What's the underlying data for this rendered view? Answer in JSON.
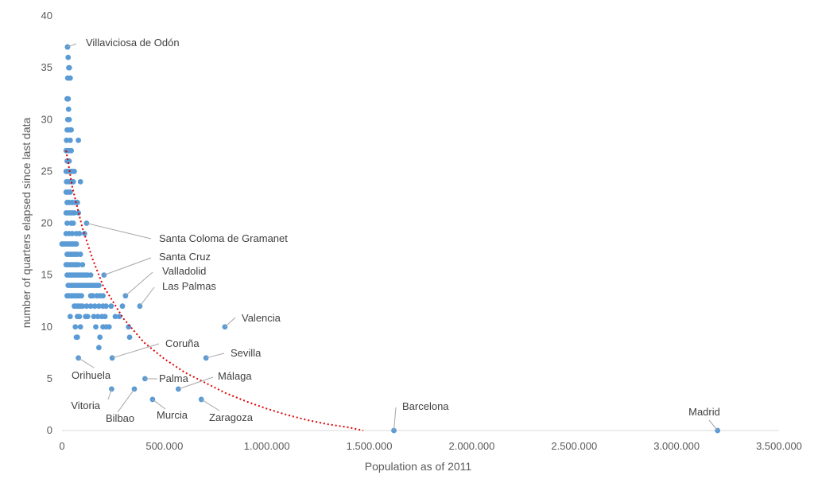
{
  "chart_data": {
    "type": "scatter",
    "title": "",
    "xlabel": "Population as of 2011",
    "ylabel": "number of quarters elapsed since last data",
    "xlim": [
      0,
      3500000
    ],
    "ylim": [
      0,
      40
    ],
    "x_ticks": [
      0,
      500000,
      1000000,
      1500000,
      2000000,
      2500000,
      3000000,
      3500000
    ],
    "x_tick_labels": [
      "0",
      "500.000",
      "1.000.000",
      "1.500.000",
      "2.000.000",
      "2.500.000",
      "3.000.000",
      "3.500.000"
    ],
    "y_ticks": [
      0,
      5,
      10,
      15,
      20,
      25,
      30,
      35,
      40
    ],
    "y_tick_labels": [
      "0",
      "5",
      "10",
      "15",
      "20",
      "25",
      "30",
      "35",
      "40"
    ],
    "grid": false,
    "legend": "none",
    "colors": {
      "points": "#5B9BD5",
      "trendline": "#E00000"
    },
    "trendline": {
      "style": "dotted",
      "type": "exponential-decay",
      "points": [
        [
          20000,
          27
        ],
        [
          50000,
          23.5
        ],
        [
          100000,
          19.5
        ],
        [
          150000,
          16.5
        ],
        [
          200000,
          14
        ],
        [
          300000,
          10.8
        ],
        [
          400000,
          8.5
        ],
        [
          500000,
          6.9
        ],
        [
          600000,
          5.6
        ],
        [
          700000,
          4.6
        ],
        [
          800000,
          3.6
        ],
        [
          900000,
          2.8
        ],
        [
          1000000,
          2.1
        ],
        [
          1100000,
          1.5
        ],
        [
          1200000,
          1
        ],
        [
          1300000,
          0.6
        ],
        [
          1400000,
          0.3
        ],
        [
          1470000,
          0
        ]
      ]
    },
    "labeled_points": [
      {
        "label": "Villaviciosa de Odón",
        "x": 27000,
        "y": 37
      },
      {
        "label": "Santa Coloma de Gramanet",
        "x": 120000,
        "y": 20
      },
      {
        "label": "Santa Cruz",
        "x": 205000,
        "y": 15
      },
      {
        "label": "Valladolid",
        "x": 310000,
        "y": 13
      },
      {
        "label": "Las Palmas",
        "x": 380000,
        "y": 12
      },
      {
        "label": "Valencia",
        "x": 795000,
        "y": 10
      },
      {
        "label": "Coruña",
        "x": 245000,
        "y": 7
      },
      {
        "label": "Sevilla",
        "x": 703000,
        "y": 7
      },
      {
        "label": "Orihuela",
        "x": 80000,
        "y": 7
      },
      {
        "label": "Palma",
        "x": 405000,
        "y": 5
      },
      {
        "label": "Málaga",
        "x": 568000,
        "y": 4
      },
      {
        "label": "Vitoria",
        "x": 242000,
        "y": 4
      },
      {
        "label": "Bilbao",
        "x": 353000,
        "y": 4
      },
      {
        "label": "Murcia",
        "x": 442000,
        "y": 3
      },
      {
        "label": "Zaragoza",
        "x": 680000,
        "y": 3
      },
      {
        "label": "Barcelona",
        "x": 1620000,
        "y": 0
      },
      {
        "label": "Madrid",
        "x": 3200000,
        "y": 0
      }
    ],
    "points": [
      [
        27000,
        37
      ],
      [
        30000,
        36
      ],
      [
        33000,
        35
      ],
      [
        36000,
        35
      ],
      [
        28000,
        34
      ],
      [
        40000,
        34
      ],
      [
        25000,
        32
      ],
      [
        30000,
        32
      ],
      [
        32000,
        31
      ],
      [
        28000,
        30
      ],
      [
        35000,
        30
      ],
      [
        25000,
        29
      ],
      [
        38000,
        29
      ],
      [
        45000,
        29
      ],
      [
        22000,
        28
      ],
      [
        40000,
        28
      ],
      [
        80000,
        28
      ],
      [
        20000,
        27
      ],
      [
        27000,
        27
      ],
      [
        35000,
        27
      ],
      [
        45000,
        27
      ],
      [
        25000,
        26
      ],
      [
        35000,
        26
      ],
      [
        20000,
        25
      ],
      [
        30000,
        25
      ],
      [
        40000,
        25
      ],
      [
        50000,
        25
      ],
      [
        60000,
        25
      ],
      [
        22000,
        24
      ],
      [
        35000,
        24
      ],
      [
        45000,
        24
      ],
      [
        55000,
        24
      ],
      [
        90000,
        24
      ],
      [
        20000,
        23
      ],
      [
        30000,
        23
      ],
      [
        40000,
        23
      ],
      [
        25000,
        22
      ],
      [
        35000,
        22
      ],
      [
        50000,
        22
      ],
      [
        65000,
        22
      ],
      [
        75000,
        22
      ],
      [
        20000,
        21
      ],
      [
        30000,
        21
      ],
      [
        40000,
        21
      ],
      [
        50000,
        21
      ],
      [
        60000,
        21
      ],
      [
        80000,
        21
      ],
      [
        25000,
        20
      ],
      [
        45000,
        20
      ],
      [
        55000,
        20
      ],
      [
        20000,
        19
      ],
      [
        35000,
        19
      ],
      [
        50000,
        19
      ],
      [
        70000,
        19
      ],
      [
        85000,
        19
      ],
      [
        110000,
        19
      ],
      [
        0,
        18
      ],
      [
        10000,
        18
      ],
      [
        20000,
        18
      ],
      [
        30000,
        18
      ],
      [
        40000,
        18
      ],
      [
        50000,
        18
      ],
      [
        60000,
        18
      ],
      [
        70000,
        18
      ],
      [
        25000,
        17
      ],
      [
        35000,
        17
      ],
      [
        45000,
        17
      ],
      [
        55000,
        17
      ],
      [
        65000,
        17
      ],
      [
        75000,
        17
      ],
      [
        90000,
        17
      ],
      [
        20000,
        16
      ],
      [
        30000,
        16
      ],
      [
        40000,
        16
      ],
      [
        50000,
        16
      ],
      [
        60000,
        16
      ],
      [
        70000,
        16
      ],
      [
        80000,
        16
      ],
      [
        100000,
        16
      ],
      [
        25000,
        15
      ],
      [
        35000,
        15
      ],
      [
        45000,
        15
      ],
      [
        55000,
        15
      ],
      [
        65000,
        15
      ],
      [
        75000,
        15
      ],
      [
        85000,
        15
      ],
      [
        95000,
        15
      ],
      [
        105000,
        15
      ],
      [
        115000,
        15
      ],
      [
        125000,
        15
      ],
      [
        140000,
        15
      ],
      [
        30000,
        14
      ],
      [
        40000,
        14
      ],
      [
        50000,
        14
      ],
      [
        60000,
        14
      ],
      [
        70000,
        14
      ],
      [
        80000,
        14
      ],
      [
        90000,
        14
      ],
      [
        100000,
        14
      ],
      [
        110000,
        14
      ],
      [
        120000,
        14
      ],
      [
        130000,
        14
      ],
      [
        140000,
        14
      ],
      [
        150000,
        14
      ],
      [
        160000,
        14
      ],
      [
        170000,
        14
      ],
      [
        180000,
        14
      ],
      [
        25000,
        13
      ],
      [
        35000,
        13
      ],
      [
        45000,
        13
      ],
      [
        55000,
        13
      ],
      [
        65000,
        13
      ],
      [
        75000,
        13
      ],
      [
        85000,
        13
      ],
      [
        95000,
        13
      ],
      [
        140000,
        13
      ],
      [
        150000,
        13
      ],
      [
        170000,
        13
      ],
      [
        185000,
        13
      ],
      [
        200000,
        13
      ],
      [
        60000,
        12
      ],
      [
        70000,
        12
      ],
      [
        80000,
        12
      ],
      [
        90000,
        12
      ],
      [
        100000,
        12
      ],
      [
        120000,
        12
      ],
      [
        140000,
        12
      ],
      [
        160000,
        12
      ],
      [
        180000,
        12
      ],
      [
        200000,
        12
      ],
      [
        215000,
        12
      ],
      [
        240000,
        12
      ],
      [
        295000,
        12
      ],
      [
        40000,
        11
      ],
      [
        75000,
        11
      ],
      [
        85000,
        11
      ],
      [
        115000,
        11
      ],
      [
        125000,
        11
      ],
      [
        155000,
        11
      ],
      [
        175000,
        11
      ],
      [
        195000,
        11
      ],
      [
        210000,
        11
      ],
      [
        260000,
        11
      ],
      [
        280000,
        11
      ],
      [
        65000,
        10
      ],
      [
        90000,
        10
      ],
      [
        165000,
        10
      ],
      [
        200000,
        10
      ],
      [
        215000,
        10
      ],
      [
        230000,
        10
      ],
      [
        325000,
        10
      ],
      [
        70000,
        9
      ],
      [
        75000,
        9
      ],
      [
        185000,
        9
      ],
      [
        330000,
        9
      ],
      [
        180000,
        8
      ]
    ]
  }
}
